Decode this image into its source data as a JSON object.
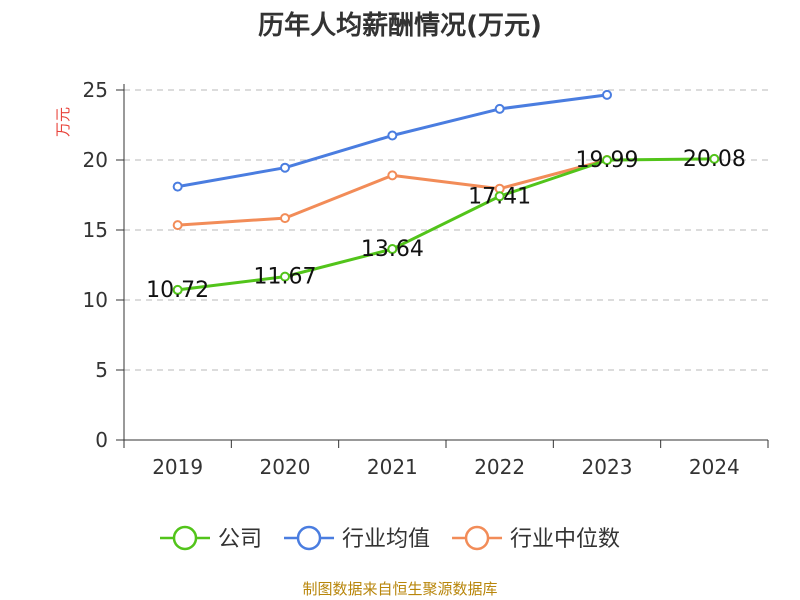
{
  "chart_data": {
    "type": "line",
    "title": "历年人均薪酬情况(万元)",
    "ylabel": "万元",
    "xlabel": "",
    "categories": [
      "2019",
      "2020",
      "2021",
      "2022",
      "2023",
      "2024"
    ],
    "ylim": [
      0,
      25
    ],
    "yticks": [
      "0",
      "5",
      "10",
      "15",
      "20",
      "25"
    ],
    "grid": true,
    "legend_position": "bottom",
    "series": [
      {
        "name": "公司",
        "color": "#52c41a",
        "values": [
          10.72,
          11.67,
          13.64,
          17.41,
          19.99,
          20.08
        ],
        "labels": [
          "10.72",
          "11.67",
          "13.64",
          "17.41",
          "19.99",
          "20.08"
        ]
      },
      {
        "name": "行业均值",
        "color": "#4a7de0",
        "values": [
          18.1,
          19.45,
          21.75,
          23.65,
          24.65,
          null
        ]
      },
      {
        "name": "行业中位数",
        "color": "#f28c58",
        "values": [
          15.35,
          15.85,
          18.9,
          17.95,
          20.0,
          null
        ]
      }
    ]
  },
  "source": "制图数据来自恒生聚源数据库"
}
